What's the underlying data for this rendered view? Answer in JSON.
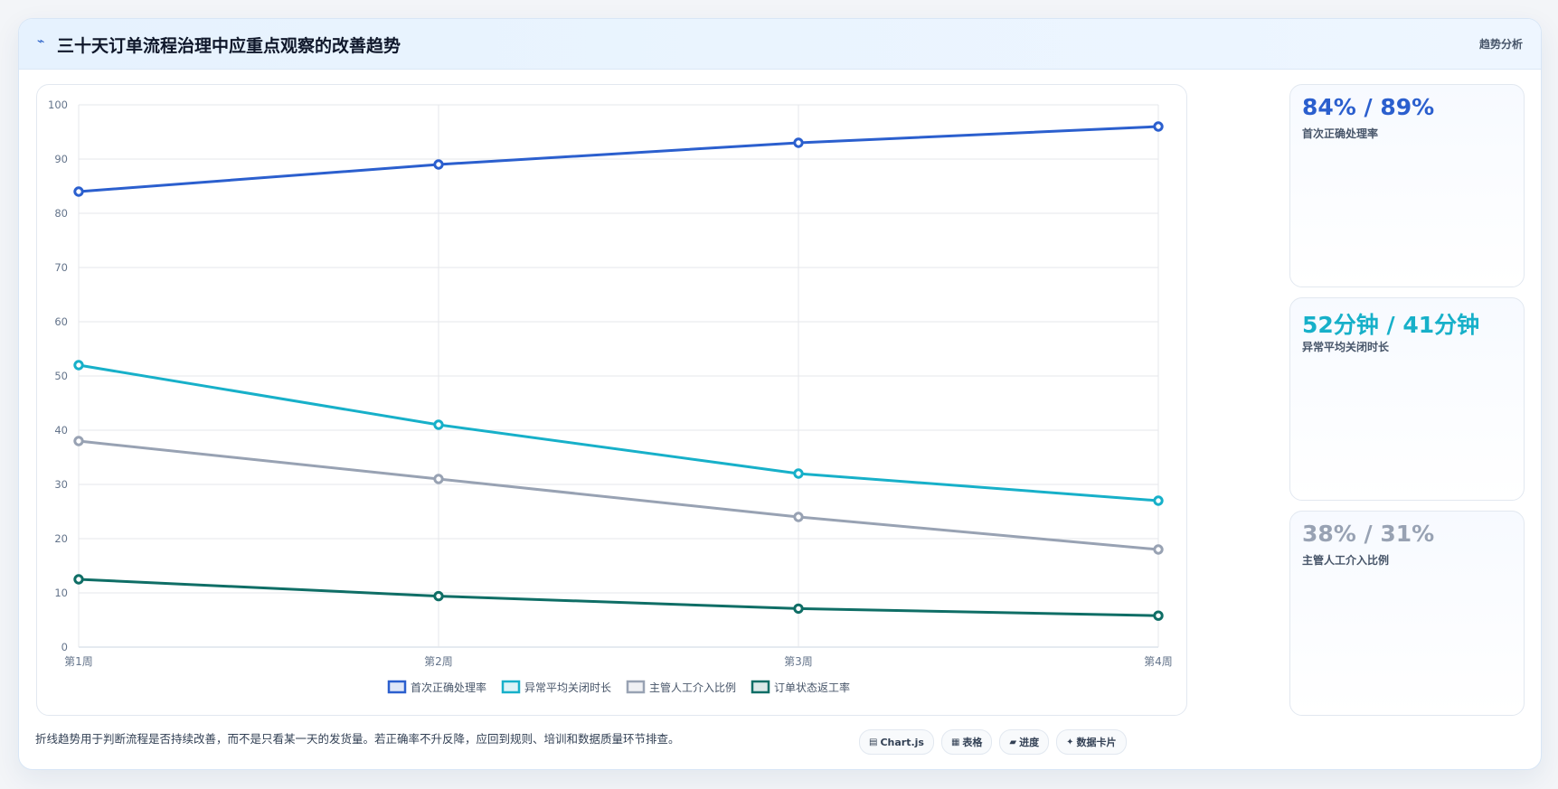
{
  "header": {
    "title": "三十天订单流程治理中应重点观察的改善趋势",
    "tag": "趋势分析",
    "icon": "sparkline-icon"
  },
  "chart_data": {
    "type": "line",
    "categories": [
      "第1周",
      "第2周",
      "第3周",
      "第4周"
    ],
    "ylim": [
      0,
      100
    ],
    "yticks": [
      0,
      10,
      20,
      30,
      40,
      50,
      60,
      70,
      80,
      90,
      100
    ],
    "grid": true,
    "legend_position": "bottom",
    "series": [
      {
        "name": "首次正确处理率",
        "color": "#2b5fce",
        "values": [
          84,
          89,
          93,
          96
        ]
      },
      {
        "name": "异常平均关闭时长",
        "color": "#17b0c9",
        "values": [
          52,
          41,
          32,
          27
        ]
      },
      {
        "name": "主管人工介入比例",
        "color": "#98a2b3",
        "values": [
          38,
          31,
          24,
          18
        ]
      },
      {
        "name": "订单状态返工率",
        "color": "#0f6e66",
        "values": [
          12.5,
          9.4,
          7.1,
          5.8
        ]
      }
    ]
  },
  "kpis": [
    {
      "value": "84% / 89%",
      "label": "首次正确处理率",
      "color": "#2b5fce"
    },
    {
      "value": "52分钟 / 41分钟",
      "label": "异常平均关闭时长",
      "color": "#17b0c9"
    },
    {
      "value": "38% / 31%",
      "label": "主管人工介入比例",
      "color": "#98a2b3"
    }
  ],
  "footnote": "折线趋势用于判断流程是否持续改善，而不是只看某一天的发货量。若正确率不升反降，应回到规则、培训和数据质量环节排查。",
  "pills": [
    {
      "icon": "chart-icon",
      "glyph": "▤",
      "label": "Chart.js"
    },
    {
      "icon": "table-icon",
      "glyph": "▦",
      "label": "表格"
    },
    {
      "icon": "progress-icon",
      "glyph": "▰",
      "label": "进度"
    },
    {
      "icon": "card-icon",
      "glyph": "✦",
      "label": "数据卡片"
    }
  ]
}
